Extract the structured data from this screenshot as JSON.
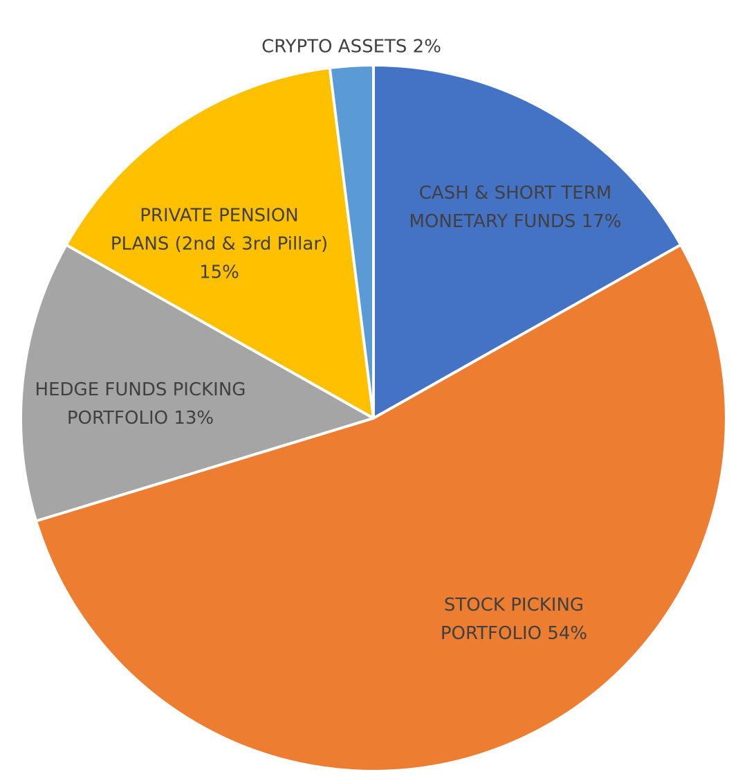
{
  "chart_data": {
    "type": "pie",
    "title": "",
    "slices": [
      {
        "name": "CASH & SHORT TERM MONETARY FUNDS",
        "value": 17,
        "color": "#4472C4",
        "label_lines": [
          "CASH & SHORT TERM",
          "MONETARY FUNDS 17%"
        ]
      },
      {
        "name": "STOCK PICKING PORTFOLIO",
        "value": 54,
        "color": "#ED7D31",
        "label_lines": [
          "STOCK PICKING",
          "PORTFOLIO 54%"
        ]
      },
      {
        "name": "HEDGE FUNDS PICKING PORTFOLIO",
        "value": 13,
        "color": "#A5A5A5",
        "label_lines": [
          "HEDGE FUNDS PICKING",
          "PORTFOLIO 13%"
        ]
      },
      {
        "name": "PRIVATE PENSION PLANS (2nd & 3rd Pillar)",
        "value": 15,
        "color": "#FFC000",
        "label_lines": [
          "PRIVATE PENSION",
          "PLANS (2nd & 3rd Pillar)",
          "15%"
        ]
      },
      {
        "name": "CRYPTO ASSETS",
        "value": 2,
        "color": "#5B9BD5",
        "label_lines": [
          "CRYPTO ASSETS 2%"
        ]
      }
    ],
    "start_angle_deg": 0,
    "direction": "clockwise",
    "legend": "none",
    "data_labels": "category and percentage"
  }
}
